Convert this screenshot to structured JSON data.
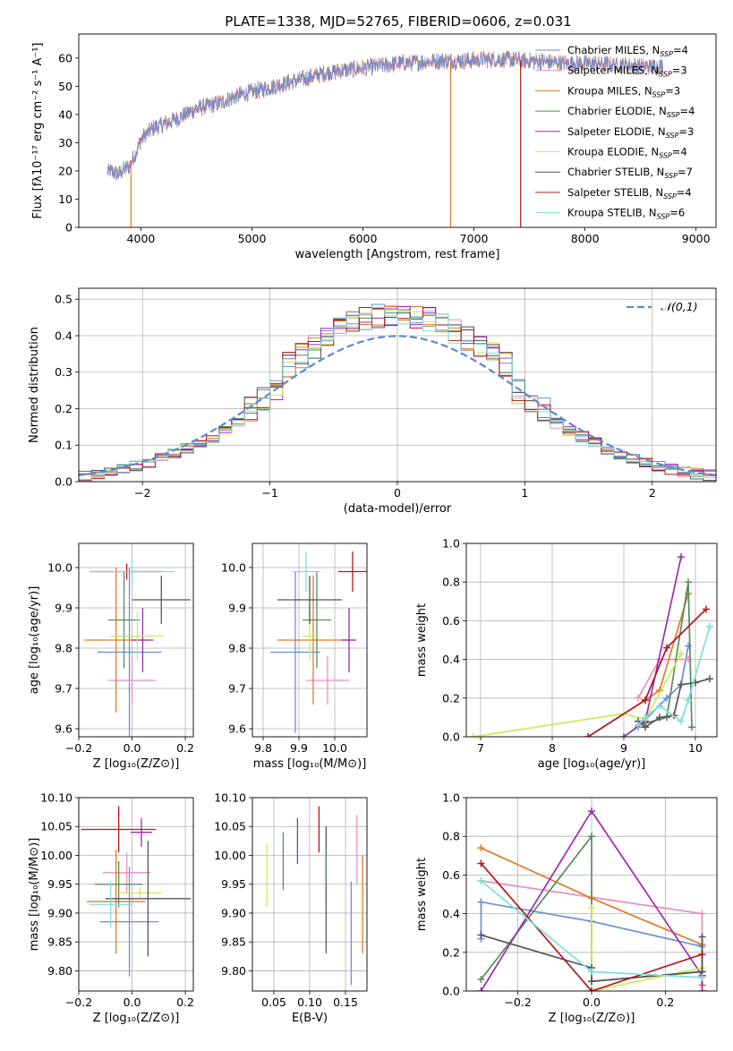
{
  "figure_title": "PLATE=1338, MJD=52765, FIBERID=0606, z=0.031",
  "colors": {
    "Chabrier MILES": "#6a8fd6",
    "Salpeter MILES": "#e88fc0",
    "Kroupa MILES": "#e07b2a",
    "Chabrier ELODIE": "#5a8a5e",
    "Salpeter ELODIE": "#9a2db0",
    "Kroupa ELODIE": "#cde85a",
    "Chabrier STELIB": "#555555",
    "Salpeter STELIB": "#b3161c",
    "Kroupa STELIB": "#7fdedb"
  },
  "chart_data": [
    {
      "id": "spectrum",
      "type": "line",
      "xlabel": "wavelength [Angstrom, rest frame]",
      "ylabel": "Flux [fλ10⁻¹⁷ erg cm⁻² s⁻¹ A⁻¹]",
      "xlim": [
        3440,
        9180
      ],
      "ylim": [
        0,
        68.5
      ],
      "xticks": [
        4000,
        5000,
        6000,
        7000,
        8000,
        9000
      ],
      "yticks": [
        0,
        10,
        20,
        30,
        40,
        50,
        60
      ],
      "grid": false,
      "legend_position": "right",
      "legend": [
        {
          "text": "Chabrier MILES, N",
          "sub": "SSP",
          "tail": "=4",
          "key": "Chabrier MILES"
        },
        {
          "text": "Salpeter MILES, N",
          "sub": "SSP",
          "tail": "=3",
          "key": "Salpeter MILES"
        },
        {
          "text": "Kroupa MILES, N",
          "sub": "SSP",
          "tail": "=3",
          "key": "Kroupa MILES"
        },
        {
          "text": "Chabrier ELODIE, N",
          "sub": "SSP",
          "tail": "=4",
          "key": "Chabrier ELODIE"
        },
        {
          "text": "Salpeter ELODIE, N",
          "sub": "SSP",
          "tail": "=3",
          "key": "Salpeter ELODIE"
        },
        {
          "text": "Kroupa ELODIE, N",
          "sub": "SSP",
          "tail": "=4",
          "key": "Kroupa ELODIE"
        },
        {
          "text": "Chabrier STELIB, N",
          "sub": "SSP",
          "tail": "=7",
          "key": "Chabrier STELIB"
        },
        {
          "text": "Salpeter STELIB, N",
          "sub": "SSP",
          "tail": "=4",
          "key": "Salpeter STELIB"
        },
        {
          "text": "Kroupa STELIB, N",
          "sub": "SSP",
          "tail": "=6",
          "key": "Kroupa STELIB"
        }
      ],
      "continuum": [
        [
          3700,
          20
        ],
        [
          3800,
          19
        ],
        [
          3900,
          22
        ],
        [
          3950,
          26
        ],
        [
          4000,
          31
        ],
        [
          4100,
          35
        ],
        [
          4300,
          38
        ],
        [
          4500,
          42
        ],
        [
          4700,
          44
        ],
        [
          4900,
          47
        ],
        [
          5100,
          49
        ],
        [
          5300,
          51
        ],
        [
          5500,
          53
        ],
        [
          5700,
          55
        ],
        [
          5900,
          56
        ],
        [
          6100,
          57
        ],
        [
          6300,
          58
        ],
        [
          6500,
          58.5
        ],
        [
          6700,
          59
        ],
        [
          6900,
          59
        ],
        [
          7100,
          59.5
        ],
        [
          7300,
          59.5
        ],
        [
          7500,
          59
        ],
        [
          7700,
          58.5
        ],
        [
          7900,
          58
        ],
        [
          8100,
          58
        ],
        [
          8300,
          57.5
        ],
        [
          8500,
          57
        ],
        [
          8700,
          57
        ]
      ],
      "dropouts": [
        {
          "key": "Kroupa MILES",
          "wavelength": 3910
        },
        {
          "key": "Kroupa MILES",
          "wavelength": 6790
        },
        {
          "key": "Salpeter STELIB",
          "wavelength": 7420
        }
      ]
    },
    {
      "id": "residuals",
      "type": "line",
      "xlabel": "(data-model)/error",
      "ylabel": "Normed distribution",
      "xlim": [
        -2.5,
        2.5
      ],
      "ylim": [
        0,
        0.53
      ],
      "xticks": [
        -2,
        -1,
        0,
        1,
        2
      ],
      "yticks": [
        0.0,
        0.1,
        0.2,
        0.3,
        0.4,
        0.5
      ],
      "grid": true,
      "legend_position": "top-right",
      "legend": [
        {
          "text": "𝒩(0,1)",
          "style": "dashed"
        }
      ],
      "bin_width": 0.1,
      "reference_curve": "normal(0,1)"
    },
    {
      "id": "age-vs-Z",
      "type": "scatter",
      "xlabel": "Z [log₁₀(Z/Z⊙)]",
      "ylabel": "age  [log₁₀(age/yr)]",
      "xlim": [
        -0.2,
        0.23
      ],
      "ylim": [
        9.58,
        10.06
      ],
      "xticks": [
        -0.2,
        0.0,
        0.2
      ],
      "yticks": [
        9.6,
        9.7,
        9.8,
        9.9,
        10.0
      ],
      "grid": true,
      "points": [
        {
          "key": "Chabrier MILES",
          "x": -0.01,
          "xerr": 0.12,
          "y": 9.79,
          "yerr": 0.21
        },
        {
          "key": "Salpeter MILES",
          "x": 0.0,
          "xerr": 0.09,
          "y": 9.72,
          "yerr": 0.06
        },
        {
          "key": "Kroupa MILES",
          "x": -0.06,
          "xerr": 0.12,
          "y": 9.82,
          "yerr": 0.18
        },
        {
          "key": "Chabrier ELODIE",
          "x": -0.03,
          "xerr": 0.06,
          "y": 9.87,
          "yerr": 0.12
        },
        {
          "key": "Salpeter ELODIE",
          "x": 0.04,
          "xerr": 0.04,
          "y": 9.82,
          "yerr": 0.08
        },
        {
          "key": "Kroupa ELODIE",
          "x": 0.02,
          "xerr": 0.1,
          "y": 9.83,
          "yerr": 0.06
        },
        {
          "key": "Chabrier STELIB",
          "x": 0.11,
          "xerr": 0.11,
          "y": 9.92,
          "yerr": 0.06
        },
        {
          "key": "Salpeter STELIB",
          "x": -0.02,
          "xerr": 0.14,
          "y": 9.99,
          "yerr": 0.02
        },
        {
          "key": "Kroupa STELIB",
          "x": 0.0,
          "xerr": 0.16,
          "y": 9.99,
          "yerr": 0.03
        }
      ]
    },
    {
      "id": "age-vs-mass",
      "type": "scatter",
      "xlabel": "mass [log₁₀(M/M⊙)]",
      "ylabel": "",
      "xlim": [
        9.77,
        10.09
      ],
      "ylim": [
        9.58,
        10.06
      ],
      "xticks": [
        9.8,
        9.9,
        10.0
      ],
      "yticks": [
        9.6,
        9.7,
        9.8,
        9.9,
        10.0
      ],
      "grid": true,
      "points": [
        {
          "key": "Chabrier MILES",
          "x": 9.89,
          "xerr": 0.07,
          "y": 9.79,
          "yerr": 0.2
        },
        {
          "key": "Salpeter MILES",
          "x": 9.98,
          "xerr": 0.06,
          "y": 9.72,
          "yerr": 0.06
        },
        {
          "key": "Kroupa MILES",
          "x": 9.94,
          "xerr": 0.1,
          "y": 9.82,
          "yerr": 0.16
        },
        {
          "key": "Chabrier ELODIE",
          "x": 9.95,
          "xerr": 0.04,
          "y": 9.87,
          "yerr": 0.12
        },
        {
          "key": "Salpeter ELODIE",
          "x": 10.04,
          "xerr": 0.02,
          "y": 9.82,
          "yerr": 0.08
        },
        {
          "key": "Kroupa ELODIE",
          "x": 9.93,
          "xerr": 0.02,
          "y": 9.83,
          "yerr": 0.06
        },
        {
          "key": "Chabrier STELIB",
          "x": 9.93,
          "xerr": 0.09,
          "y": 9.92,
          "yerr": 0.06
        },
        {
          "key": "Salpeter STELIB",
          "x": 10.05,
          "xerr": 0.04,
          "y": 9.99,
          "yerr": 0.05
        },
        {
          "key": "Kroupa STELIB",
          "x": 9.92,
          "xerr": 0.04,
          "y": 9.99,
          "yerr": 0.05
        }
      ]
    },
    {
      "id": "weight-vs-age",
      "type": "line",
      "xlabel": "age  [log₁₀(age/yr)]",
      "ylabel": "mass weight",
      "xlim": [
        6.8,
        10.3
      ],
      "ylim": [
        0.0,
        1.0
      ],
      "xticks": [
        7,
        8,
        9,
        10
      ],
      "yticks": [
        0.0,
        0.2,
        0.4,
        0.6,
        0.8,
        1.0
      ],
      "grid": true,
      "series": [
        {
          "key": "Chabrier MILES",
          "x": [
            9.2,
            9.6,
            9.8,
            9.9
          ],
          "y": [
            0.05,
            0.2,
            0.27,
            0.47
          ]
        },
        {
          "key": "Salpeter MILES",
          "x": [
            9.2,
            9.5,
            9.9
          ],
          "y": [
            0.2,
            0.4,
            0.4
          ]
        },
        {
          "key": "Kroupa MILES",
          "x": [
            9.3,
            9.5,
            9.9
          ],
          "y": [
            0.19,
            0.24,
            0.74
          ]
        },
        {
          "key": "Chabrier ELODIE",
          "x": [
            9.2,
            9.6,
            9.9,
            9.95
          ],
          "y": [
            0.06,
            0.1,
            0.8,
            0.05
          ]
        },
        {
          "key": "Salpeter ELODIE",
          "x": [
            9.0,
            9.3,
            9.8
          ],
          "y": [
            0.0,
            0.08,
            0.93
          ]
        },
        {
          "key": "Kroupa ELODIE",
          "x": [
            6.9,
            9.0,
            9.3,
            9.8
          ],
          "y": [
            0.0,
            0.12,
            0.09,
            0.43
          ]
        },
        {
          "key": "Chabrier STELIB",
          "x": [
            9.2,
            9.3,
            9.5,
            9.7,
            9.8,
            10.0,
            10.2
          ],
          "y": [
            0.08,
            0.05,
            0.1,
            0.11,
            0.27,
            0.28,
            0.3
          ]
        },
        {
          "key": "Salpeter STELIB",
          "x": [
            8.5,
            9.3,
            9.6,
            10.15
          ],
          "y": [
            0.0,
            0.19,
            0.46,
            0.66
          ]
        },
        {
          "key": "Kroupa STELIB",
          "x": [
            9.2,
            9.3,
            9.5,
            9.8,
            9.9,
            10.2
          ],
          "y": [
            0.06,
            0.1,
            0.16,
            0.08,
            0.19,
            0.57
          ]
        }
      ]
    },
    {
      "id": "mass-vs-Z",
      "type": "scatter",
      "xlabel": "Z [log₁₀(Z/Z⊙)]",
      "ylabel": "mass [log₁₀(M/M⊙)]",
      "xlim": [
        -0.2,
        0.23
      ],
      "ylim": [
        9.765,
        10.1
      ],
      "xticks": [
        -0.2,
        0.0,
        0.2
      ],
      "yticks": [
        9.8,
        9.85,
        9.9,
        9.95,
        10.0,
        10.05,
        10.1
      ],
      "grid": true,
      "points": [
        {
          "key": "Chabrier MILES",
          "x": -0.01,
          "xerr": 0.11,
          "y": 9.885,
          "yerr": 0.095
        },
        {
          "key": "Salpeter MILES",
          "x": -0.02,
          "xerr": 0.09,
          "y": 9.97,
          "yerr": 0.035
        },
        {
          "key": "Kroupa MILES",
          "x": -0.06,
          "xerr": 0.11,
          "y": 9.92,
          "yerr": 0.09
        },
        {
          "key": "Chabrier ELODIE",
          "x": -0.05,
          "xerr": 0.09,
          "y": 9.95,
          "yerr": 0.04
        },
        {
          "key": "Salpeter ELODIE",
          "x": 0.035,
          "xerr": 0.04,
          "y": 10.04,
          "yerr": 0.025
        },
        {
          "key": "Kroupa ELODIE",
          "x": 0.03,
          "xerr": 0.08,
          "y": 9.935,
          "yerr": 0.01
        },
        {
          "key": "Chabrier STELIB",
          "x": 0.06,
          "xerr": 0.16,
          "y": 9.925,
          "yerr": 0.1
        },
        {
          "key": "Salpeter STELIB",
          "x": -0.05,
          "xerr": 0.14,
          "y": 10.045,
          "yerr": 0.04
        },
        {
          "key": "Kroupa STELIB",
          "x": -0.08,
          "xerr": 0.08,
          "y": 9.915,
          "yerr": 0.04
        }
      ]
    },
    {
      "id": "mass-vs-EBV",
      "type": "scatter",
      "xlabel": "E(B-V)",
      "ylabel": "",
      "xlim": [
        0.02,
        0.18
      ],
      "ylim": [
        9.765,
        10.1
      ],
      "xticks": [
        0.05,
        0.1,
        0.15
      ],
      "yticks": [
        9.8,
        9.85,
        9.9,
        9.95,
        10.0,
        10.05,
        10.1
      ],
      "grid": true,
      "points": [
        {
          "key": "Kroupa ELODIE",
          "x": 0.04,
          "xerr": 0,
          "y": 9.965,
          "yerr": 0.055
        },
        {
          "key": "Chabrier ELODIE",
          "x": 0.063,
          "xerr": 0,
          "y": 9.99,
          "yerr": 0.05
        },
        {
          "key": "Salpeter ELODIE",
          "x": 0.083,
          "xerr": 0,
          "y": 10.025,
          "yerr": 0.04
        },
        {
          "key": "Salpeter STELIB",
          "x": 0.113,
          "xerr": 0,
          "y": 10.045,
          "yerr": 0.04
        },
        {
          "key": "Chabrier STELIB",
          "x": 0.123,
          "xerr": 0,
          "y": 9.94,
          "yerr": 0.11
        },
        {
          "key": "Kroupa STELIB",
          "x": 0.122,
          "xerr": 0,
          "y": 9.98,
          "yerr": 0.03
        },
        {
          "key": "Chabrier MILES",
          "x": 0.158,
          "xerr": 0,
          "y": 9.865,
          "yerr": 0.09
        },
        {
          "key": "Salpeter MILES",
          "x": 0.166,
          "xerr": 0,
          "y": 10.01,
          "yerr": 0.06
        },
        {
          "key": "Kroupa MILES",
          "x": 0.174,
          "xerr": 0,
          "y": 9.915,
          "yerr": 0.085
        }
      ]
    },
    {
      "id": "weight-vs-Z",
      "type": "line",
      "xlabel": "Z [log₁₀(Z/Z⊙)]",
      "ylabel": "mass weight",
      "xlim": [
        -0.34,
        0.34
      ],
      "ylim": [
        0.0,
        1.0
      ],
      "xticks": [
        -0.2,
        0.0,
        0.2
      ],
      "yticks": [
        0.0,
        0.2,
        0.4,
        0.6,
        0.8,
        1.0
      ],
      "grid": true,
      "series": [
        {
          "key": "Chabrier MILES",
          "x": [
            -0.3,
            -0.3,
            0.0,
            0.3
          ],
          "y": [
            0.27,
            0.46,
            0.36,
            0.23
          ]
        },
        {
          "key": "Salpeter MILES",
          "x": [
            -0.3,
            0.3,
            0.3
          ],
          "y": [
            0.57,
            0.4,
            0.03
          ]
        },
        {
          "key": "Kroupa MILES",
          "x": [
            -0.3,
            0.0,
            0.3,
            0.3
          ],
          "y": [
            0.74,
            0.48,
            0.24,
            0.03
          ]
        },
        {
          "key": "Chabrier ELODIE",
          "x": [
            -0.3,
            0.0,
            0.0,
            0.3
          ],
          "y": [
            0.06,
            0.8,
            0.05,
            0.1
          ]
        },
        {
          "key": "Salpeter ELODIE",
          "x": [
            -0.3,
            0.0,
            0.3,
            0.3
          ],
          "y": [
            0.0,
            0.93,
            0.08,
            0.0
          ]
        },
        {
          "key": "Kroupa ELODIE",
          "x": [
            0.0,
            0.0,
            0.3
          ],
          "y": [
            0.43,
            0.0,
            0.12
          ]
        },
        {
          "key": "Chabrier STELIB",
          "x": [
            -0.3,
            0.0,
            0.0,
            0.3,
            0.3
          ],
          "y": [
            0.29,
            0.12,
            0.05,
            0.1,
            0.28
          ]
        },
        {
          "key": "Salpeter STELIB",
          "x": [
            -0.3,
            0.0,
            0.3
          ],
          "y": [
            0.66,
            0.0,
            0.19
          ]
        },
        {
          "key": "Kroupa STELIB",
          "x": [
            -0.3,
            0.0,
            0.3
          ],
          "y": [
            0.57,
            0.1,
            0.07
          ]
        }
      ]
    }
  ]
}
